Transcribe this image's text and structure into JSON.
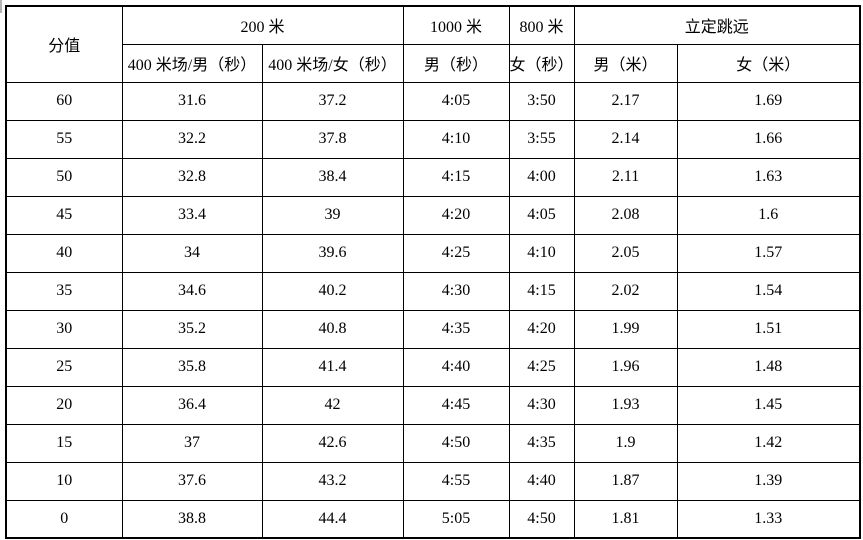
{
  "colors": {
    "background": "#ffffff",
    "border": "#000000",
    "text": "#000000",
    "edge_artifact": "#b4b4b4"
  },
  "table": {
    "score_label": "分值",
    "groups": [
      {
        "label": "200 米"
      },
      {
        "label": "1000 米"
      },
      {
        "label": "800 米"
      },
      {
        "label": "立定跳远"
      }
    ],
    "subheaders": [
      "400 米场/男（秒）",
      "400 米场/女（秒）",
      "男（秒）",
      "女（秒）",
      "男（米）",
      "女（米）"
    ],
    "rows": [
      [
        "60",
        "31.6",
        "37.2",
        "4:05",
        "3:50",
        "2.17",
        "1.69"
      ],
      [
        "55",
        "32.2",
        "37.8",
        "4:10",
        "3:55",
        "2.14",
        "1.66"
      ],
      [
        "50",
        "32.8",
        "38.4",
        "4:15",
        "4:00",
        "2.11",
        "1.63"
      ],
      [
        "45",
        "33.4",
        "39",
        "4:20",
        "4:05",
        "2.08",
        "1.6"
      ],
      [
        "40",
        "34",
        "39.6",
        "4:25",
        "4:10",
        "2.05",
        "1.57"
      ],
      [
        "35",
        "34.6",
        "40.2",
        "4:30",
        "4:15",
        "2.02",
        "1.54"
      ],
      [
        "30",
        "35.2",
        "40.8",
        "4:35",
        "4:20",
        "1.99",
        "1.51"
      ],
      [
        "25",
        "35.8",
        "41.4",
        "4:40",
        "4:25",
        "1.96",
        "1.48"
      ],
      [
        "20",
        "36.4",
        "42",
        "4:45",
        "4:30",
        "1.93",
        "1.45"
      ],
      [
        "15",
        "37",
        "42.6",
        "4:50",
        "4:35",
        "1.9",
        "1.42"
      ],
      [
        "10",
        "37.6",
        "43.2",
        "4:55",
        "4:40",
        "1.87",
        "1.39"
      ],
      [
        "0",
        "38.8",
        "44.4",
        "5:05",
        "4:50",
        "1.81",
        "1.33"
      ]
    ]
  }
}
